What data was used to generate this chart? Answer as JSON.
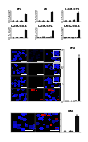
{
  "top_row1": [
    {
      "title": "RTA",
      "bars": [
        0.2,
        0.3,
        0.4,
        3.5
      ],
      "ylim": [
        0,
        5
      ],
      "yticks": [
        0,
        1,
        2,
        3,
        4,
        5
      ]
    },
    {
      "title": "K8",
      "bars": [
        0.2,
        0.3,
        0.5,
        7.0
      ],
      "ylim": [
        0,
        8
      ],
      "yticks": [
        0,
        2,
        4,
        6,
        8
      ]
    },
    {
      "title": "LANA/RTA",
      "bars": [
        0.2,
        0.3,
        0.4,
        3.2
      ],
      "ylim": [
        0,
        4
      ],
      "yticks": [
        0,
        1,
        2,
        3,
        4
      ]
    }
  ],
  "top_row2": [
    {
      "title": "LANA/K8.1",
      "bars": [
        0.2,
        0.3,
        0.5,
        4.5
      ],
      "ylim": [
        0,
        6
      ],
      "yticks": [
        0,
        2,
        4,
        6
      ]
    },
    {
      "title": "LANA/RTA",
      "bars": [
        0.2,
        0.3,
        0.4,
        0.5,
        0.2,
        0.3,
        0.5,
        2.8
      ],
      "ylim": [
        0,
        4
      ],
      "yticks": [
        0,
        1,
        2,
        3,
        4
      ]
    },
    {
      "title": "LANA/K8.1",
      "bars": [
        0.2,
        0.3,
        0.4,
        0.5,
        0.2,
        0.3,
        0.5,
        4.0
      ],
      "ylim": [
        0,
        5
      ],
      "yticks": [
        0,
        1,
        2,
        3,
        4,
        5
      ]
    }
  ],
  "right_bar": {
    "title": "RTA",
    "bars": [
      0.1,
      0.1,
      0.1,
      0.1,
      0.2,
      7.5
    ],
    "ylim": [
      0,
      9
    ],
    "yticks": [
      0,
      3,
      6,
      9
    ]
  },
  "bot_bar": {
    "title": "RTA",
    "bars": [
      0.1,
      0.2,
      2.5
    ],
    "ylim": [
      0,
      3
    ],
    "yticks": [
      0,
      1,
      2,
      3
    ]
  },
  "bar_colors_4": [
    "#aaaaaa",
    "#777777",
    "#444444",
    "#111111"
  ],
  "bar_colors_8": [
    "#cccccc",
    "#aaaaaa",
    "#888888",
    "#555555",
    "#cccccc",
    "#aaaaaa",
    "#888888",
    "#111111"
  ],
  "bar_colors_6": [
    "#cccccc",
    "#aaaaaa",
    "#888888",
    "#555555",
    "#aaaaaa",
    "#111111"
  ],
  "bar_colors_3": [
    "#aaaaaa",
    "#555555",
    "#111111"
  ],
  "right_colors": [
    "#cccccc",
    "#bbbbbb",
    "#aaaaaa",
    "#888888",
    "#555555",
    "#111111"
  ],
  "micro_rows": 4,
  "micro_cols": 3,
  "background_color": "#ffffff"
}
